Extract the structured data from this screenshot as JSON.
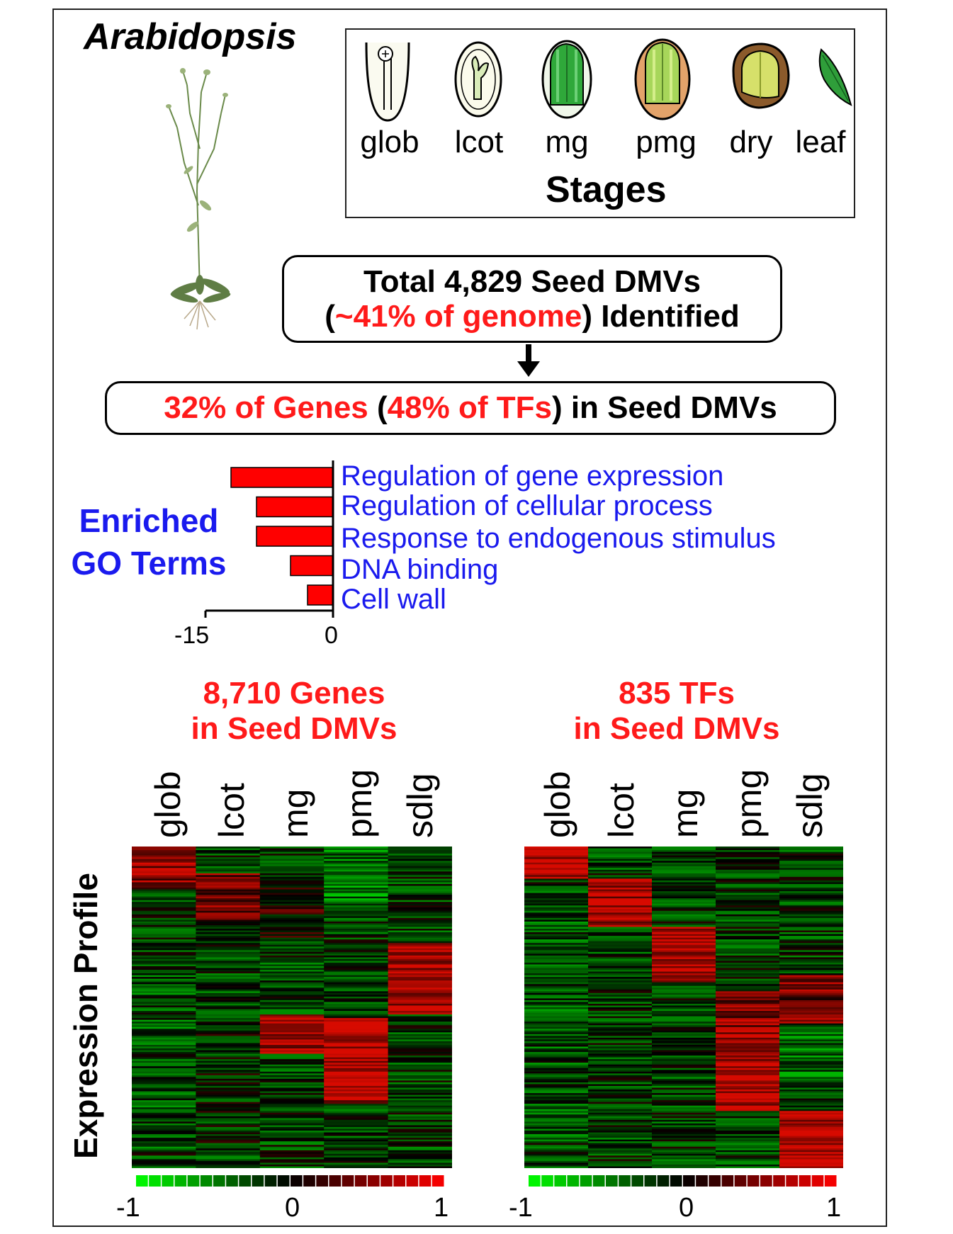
{
  "organism": "Arabidopsis",
  "stages": {
    "heading": "Stages",
    "labels": [
      "glob",
      "lcot",
      "mg",
      "pmg",
      "dry",
      "leaf"
    ]
  },
  "summary": {
    "line1": "Total 4,829 Seed DMVs",
    "line2_open": "(",
    "line2_red": "~41% of genome",
    "line2_close": ") Identified"
  },
  "genes_box": {
    "red1": "32% of Genes",
    "black1": " (",
    "red2": "48% of TFs",
    "black2": ") in Seed DMVs"
  },
  "go": {
    "title_line1": "Enriched",
    "title_line2": "GO Terms",
    "terms": [
      {
        "label": "Regulation of gene expression",
        "value": -12
      },
      {
        "label": "Regulation of cellular process",
        "value": -9
      },
      {
        "label": "Response to endogenous stimulus",
        "value": -9
      },
      {
        "label": "DNA binding",
        "value": -5
      },
      {
        "label": "Cell wall",
        "value": -3
      }
    ],
    "axis_min": -15,
    "axis_max": 0,
    "tick_labels": [
      "-15",
      "0"
    ],
    "bar_color": "#ff0000"
  },
  "heatmaps": [
    {
      "title_line1": "8,710 Genes",
      "title_line2": "in Seed DMVs",
      "columns": [
        "glob",
        "lcot",
        "mg",
        "pmg",
        "sdlg"
      ]
    },
    {
      "title_line1": "835 TFs",
      "title_line2": "in Seed DMVs",
      "columns": [
        "glob",
        "lcot",
        "mg",
        "pmg",
        "sdlg"
      ]
    }
  ],
  "y_axis_title": "Expression Profile",
  "color_scale": {
    "min_label": "-1",
    "mid_label": "0",
    "max_label": "1",
    "low_color": "#00ff00",
    "mid_color": "#000000",
    "high_color": "#ff0000"
  }
}
